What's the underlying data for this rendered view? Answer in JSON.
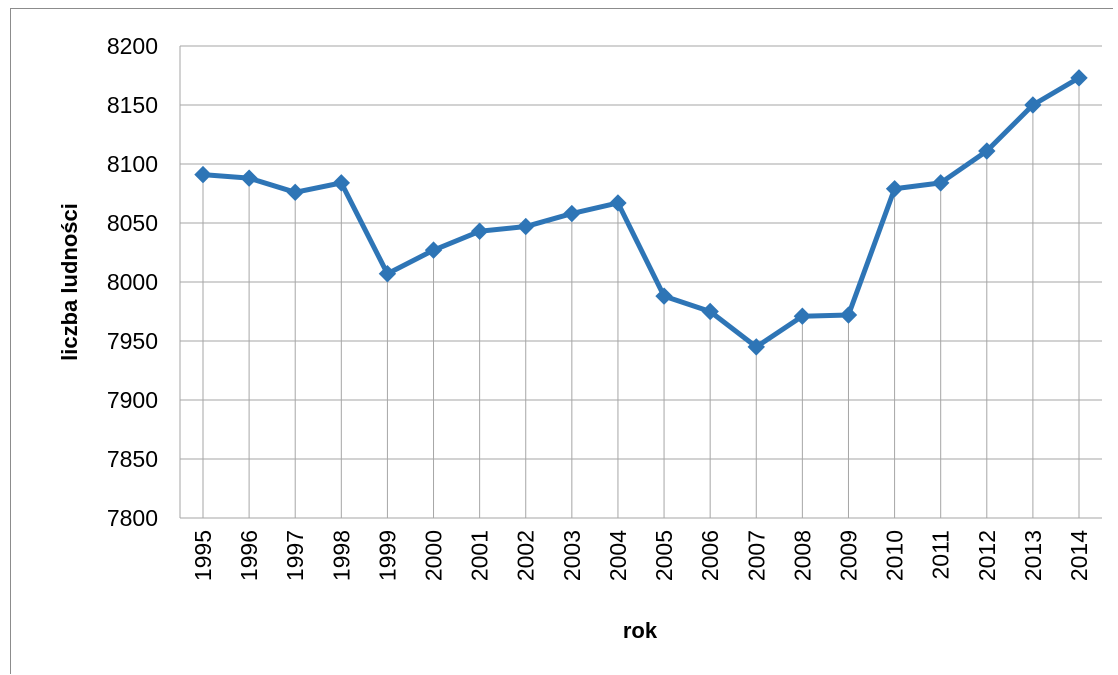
{
  "chart_data": {
    "type": "line",
    "title": "",
    "xlabel": "rok",
    "ylabel": "liczba ludności",
    "ylim": [
      7800,
      8200
    ],
    "yticks": [
      7800,
      7850,
      7900,
      7950,
      8000,
      8050,
      8100,
      8150,
      8200
    ],
    "grid": true,
    "legend": "none",
    "color": "#2e75b6",
    "categories": [
      "1995",
      "1996",
      "1997",
      "1998",
      "1999",
      "2000",
      "2001",
      "2002",
      "2003",
      "2004",
      "2005",
      "2006",
      "2007",
      "2008",
      "2009",
      "2010",
      "2011",
      "2012",
      "2013",
      "2014"
    ],
    "values": [
      8091,
      8088,
      8076,
      8084,
      8007,
      8027,
      8043,
      8047,
      8058,
      8067,
      7988,
      7975,
      7945,
      7971,
      7972,
      8079,
      8084,
      8111,
      8150,
      8173
    ]
  }
}
